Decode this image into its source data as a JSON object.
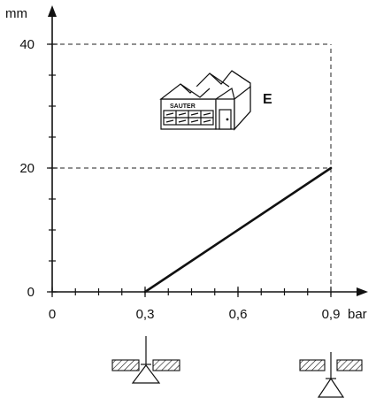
{
  "chart_data": {
    "type": "line",
    "ylabel": "mm",
    "xlabel": "bar",
    "xlim": [
      0,
      0.9
    ],
    "ylim": [
      0,
      40
    ],
    "x_ticks": [
      {
        "value": 0,
        "label": "0"
      },
      {
        "value": 0.3,
        "label": "0,3"
      },
      {
        "value": 0.6,
        "label": "0,6"
      },
      {
        "value": 0.9,
        "label": "0,9"
      }
    ],
    "x_minor_step": 0.075,
    "y_ticks": [
      {
        "value": 0,
        "label": "0"
      },
      {
        "value": 20,
        "label": "20"
      },
      {
        "value": 40,
        "label": "40"
      }
    ],
    "y_minor_step": 5,
    "series": [
      {
        "points": [
          {
            "x": 0.3,
            "y": 0
          },
          {
            "x": 0.9,
            "y": 20
          }
        ]
      }
    ],
    "reference_lines": [
      {
        "type": "horizontal",
        "y": 40,
        "x_to": 0.9
      },
      {
        "type": "horizontal",
        "y": 20,
        "x_to": 0.9
      },
      {
        "type": "vertical",
        "x": 0.9,
        "y_to": 40
      }
    ],
    "grid": false,
    "legend": "none"
  },
  "illustration": {
    "brand": "SAUTER",
    "label": "E",
    "icon": "factory-icon"
  },
  "valve_symbols": {
    "left_icon": "valve-closed-icon",
    "right_icon": "valve-open-icon"
  }
}
